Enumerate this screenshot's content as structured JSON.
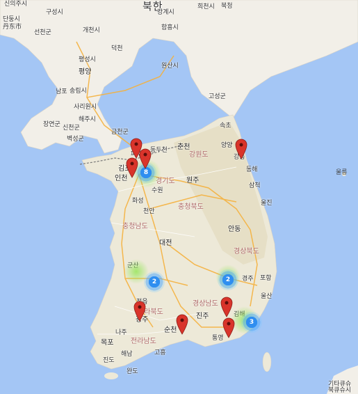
{
  "map": {
    "country_label": "북한",
    "place_labels": [
      "신의주시",
      "구성시",
      "희천시",
      "강계시",
      "단둥시",
      "丹东市",
      "선천군",
      "개천시",
      "함흥시",
      "북청",
      "평성시",
      "덕천",
      "평양",
      "원산시",
      "남포",
      "송림시",
      "고성군",
      "사리원시",
      "해주시",
      "장연군",
      "신천군",
      "벽성군",
      "금천군",
      "속초",
      "양양",
      "강릉",
      "동해",
      "삼척",
      "춘천",
      "동두천",
      "파주",
      "김포",
      "인천",
      "수원",
      "원주",
      "화성",
      "울진",
      "천안",
      "안동",
      "대전",
      "군산",
      "경주",
      "포항",
      "정읍",
      "광주",
      "진주",
      "김해",
      "울산",
      "순천",
      "나주",
      "목포",
      "해남",
      "진도",
      "완도",
      "고흥",
      "통영",
      "울릉",
      "기타큐슈",
      "북큐슈시"
    ],
    "region_labels": [
      "강원도",
      "경기도",
      "충청북도",
      "충청남도",
      "경상북도",
      "경상남도",
      "전라북도",
      "전라남도"
    ],
    "clusters": [
      {
        "name": "cluster-seoul",
        "count": "8"
      },
      {
        "name": "cluster-jeonbuk",
        "count": "2"
      },
      {
        "name": "cluster-gyeongbuk",
        "count": "2"
      },
      {
        "name": "cluster-busan",
        "count": "3"
      }
    ],
    "marker_count": 8,
    "colors": {
      "water": "#a4c6f5",
      "land": "#f2efe8",
      "pin": "#d9342b",
      "cluster": "#2f8ef0",
      "road_highway": "#f5b13d"
    }
  }
}
